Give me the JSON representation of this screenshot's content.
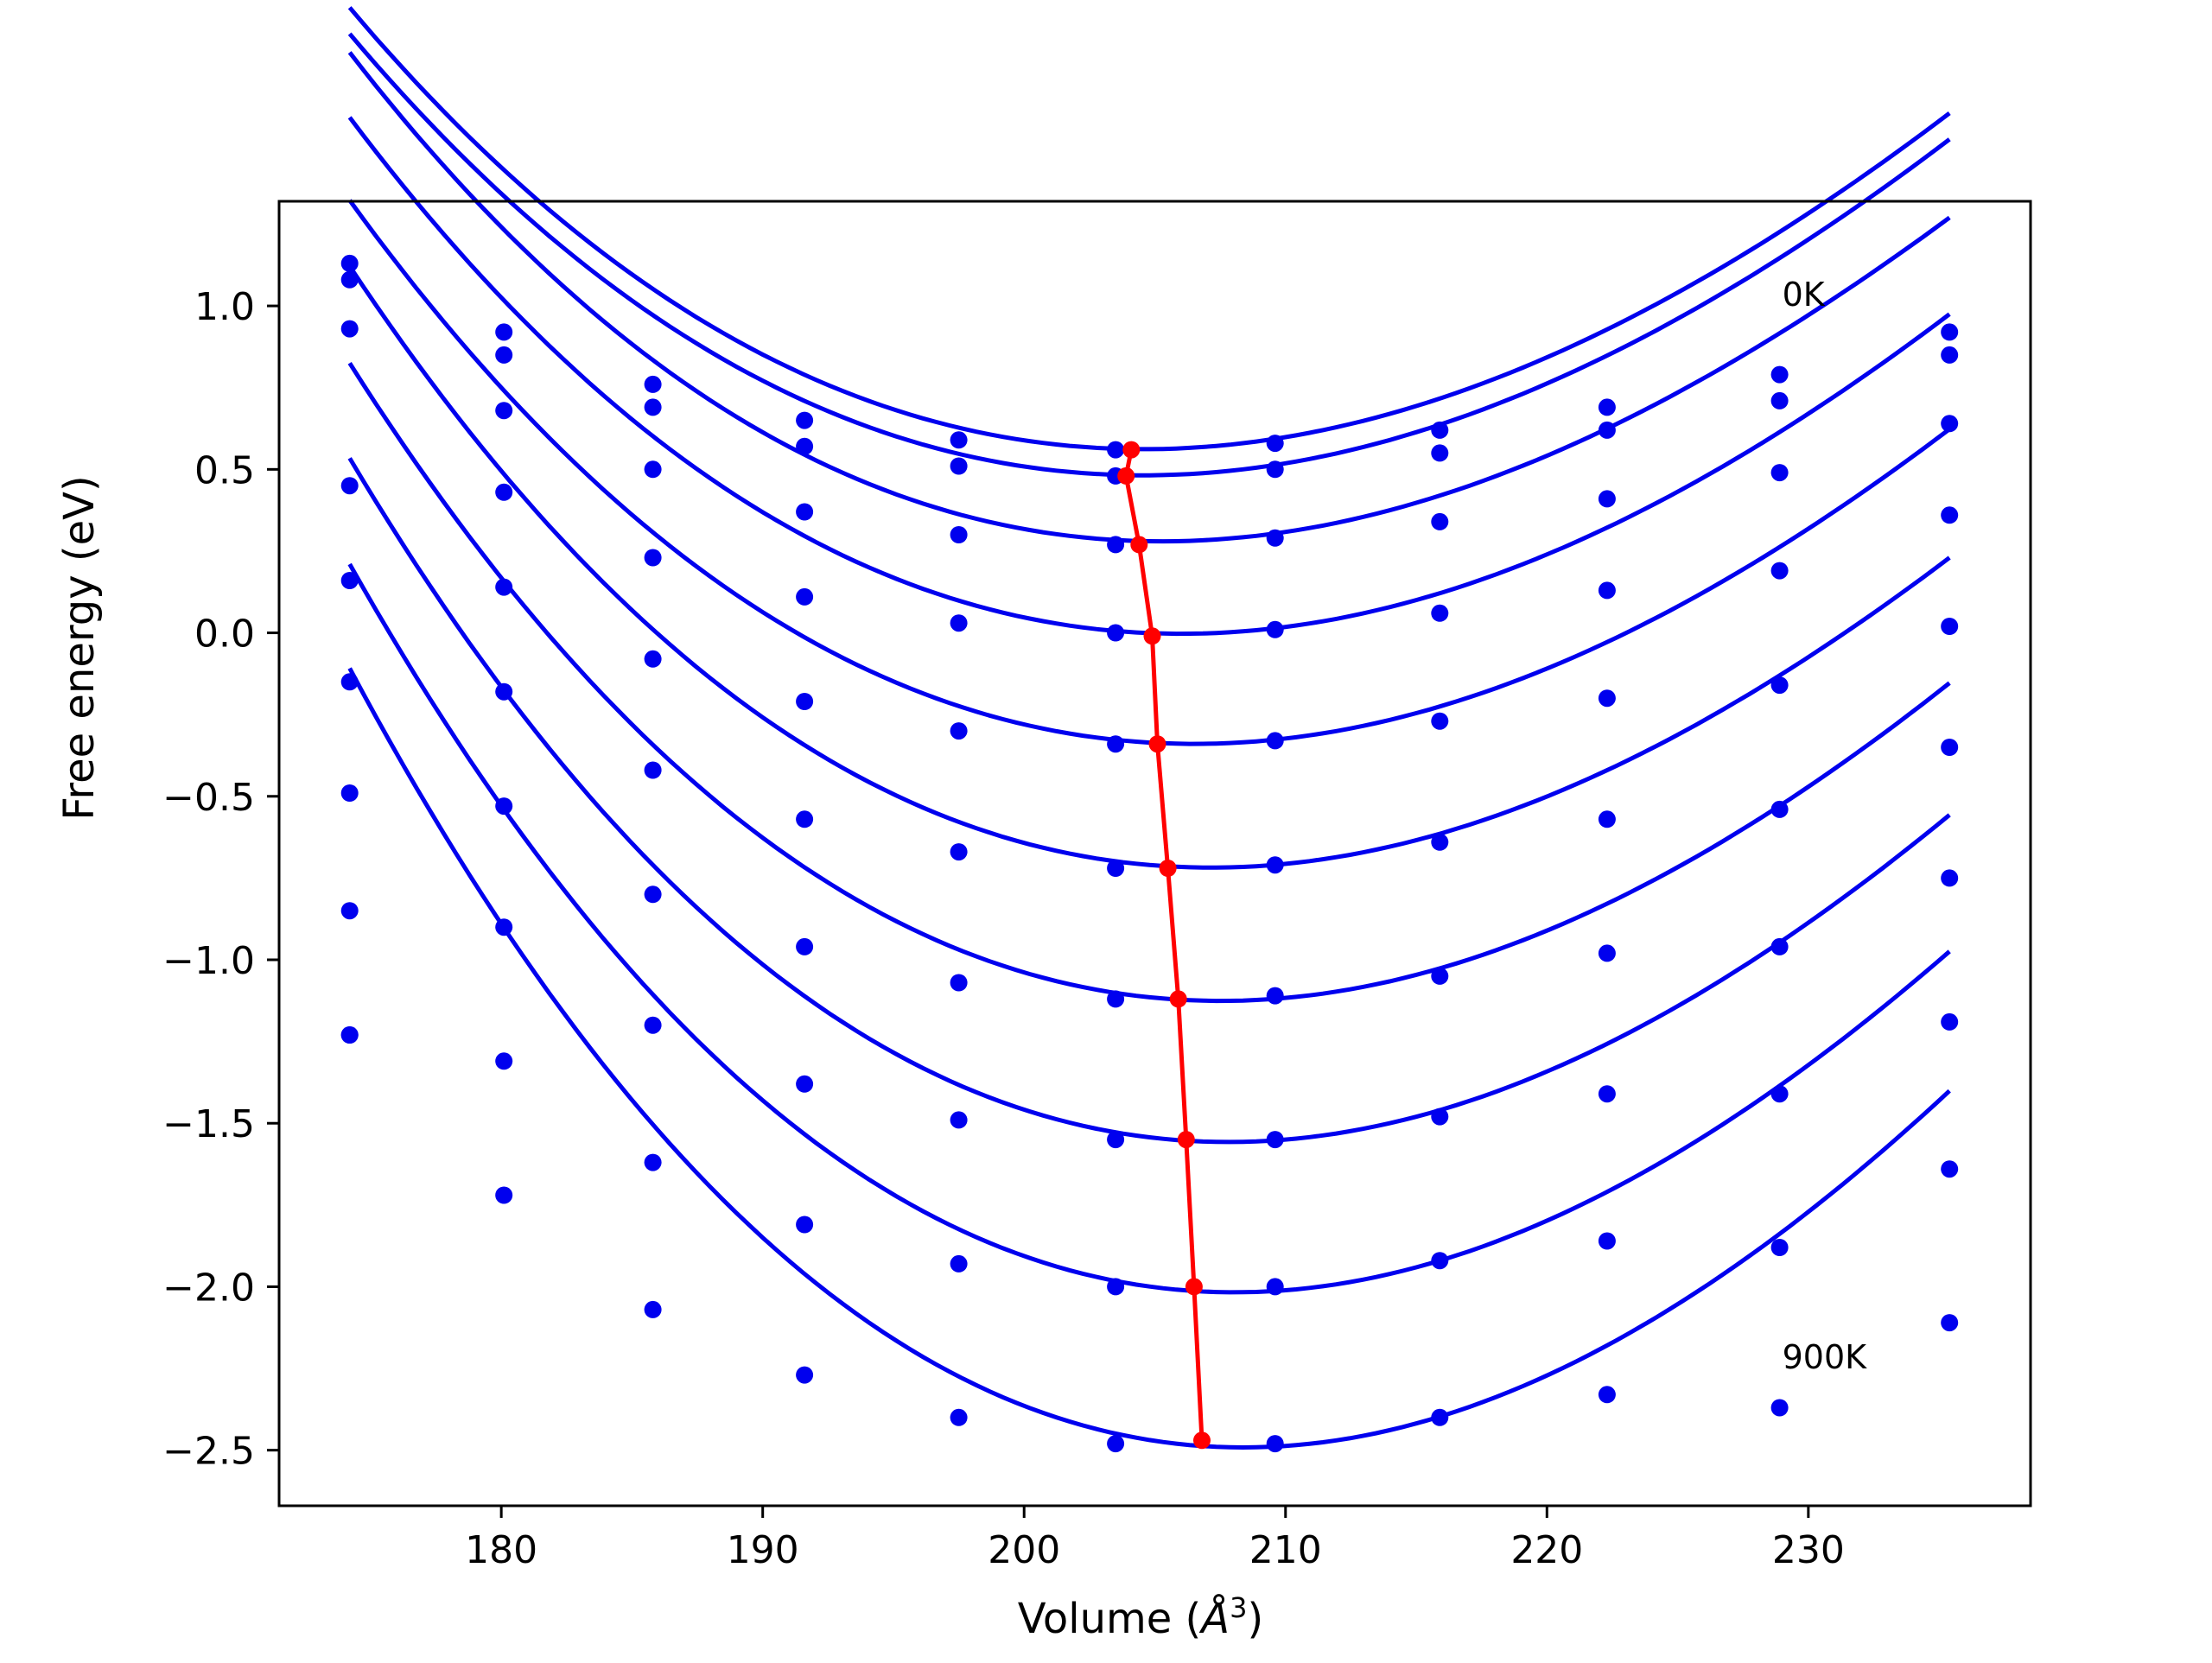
{
  "chart_data": {
    "type": "line",
    "title": "",
    "xlabel": "Volume (",
    "xlabel_symbol": "Å",
    "xlabel_exp": "3",
    "xlabel_close": ")",
    "ylabel": "Free energy (eV)",
    "xlim": [
      171.5,
      238.5
    ],
    "ylim": [
      -2.67,
      1.32
    ],
    "xticks": [
      180,
      190,
      200,
      210,
      220,
      230
    ],
    "xtick_labels": [
      "180",
      "190",
      "200",
      "210",
      "220",
      "230"
    ],
    "yticks": [
      1.0,
      0.5,
      0.0,
      -0.5,
      -1.0,
      -1.5,
      -2.0,
      -2.5
    ],
    "ytick_labels": [
      "1.0",
      "0.5",
      "0.0",
      "−0.5",
      "−1.0",
      "−1.5",
      "−2.0",
      "−2.5"
    ],
    "grid": false,
    "legend": "none",
    "colors": {
      "series": "#0000ee",
      "minima": "#ff0000",
      "frame": "#000000"
    },
    "annotations": [
      {
        "text": "0K",
        "x": 229.0,
        "y": 1.0
      },
      {
        "text": "900K",
        "x": 229.0,
        "y": -2.25
      }
    ],
    "volumes": [
      174.2,
      180.1,
      185.8,
      191.6,
      197.5,
      203.5,
      209.6,
      215.9,
      222.3,
      228.9,
      235.4
    ],
    "series": [
      {
        "scatter": [
          1.13,
          0.92,
          0.76,
          0.65,
          0.59,
          0.56,
          0.58,
          0.62,
          0.69,
          0.79,
          0.92
        ],
        "fit": {
          "coef": [
            0.5622,
            -0.00142,
            0.001285,
            -6.3e-06
          ]
        }
      },
      {
        "scatter": [
          1.08,
          0.85,
          0.69,
          0.57,
          0.51,
          0.48,
          0.5,
          0.55,
          0.62,
          0.71,
          0.85
        ],
        "fit": {
          "coef": [
            0.4822,
            -0.00142,
            0.001285,
            -6.3e-06
          ]
        }
      },
      {
        "scatter": [
          0.93,
          0.68,
          0.5,
          0.37,
          0.3,
          0.27,
          0.29,
          0.34,
          0.41,
          0.49,
          0.64
        ],
        "fit": {
          "coef": [
            0.282,
            -0.00337,
            0.001345,
            -7.5e-06
          ]
        }
      },
      {
        "scatter": [
          0.45,
          0.43,
          0.23,
          0.11,
          0.03,
          0.0,
          0.01,
          0.06,
          0.13,
          0.19,
          0.36
        ],
        "fit": {
          "coef": [
            0.0027,
            -0.00547,
            0.00138,
            -7e-06
          ]
        }
      },
      {
        "scatter": [
          0.16,
          0.14,
          -0.08,
          -0.21,
          -0.3,
          -0.34,
          -0.33,
          -0.27,
          -0.2,
          -0.16,
          0.02
        ],
        "fit": {
          "coef": [
            -0.331,
            -0.00694,
            0.001415,
            -7.2e-06
          ]
        }
      },
      {
        "scatter": [
          -0.15,
          -0.18,
          -0.42,
          -0.57,
          -0.67,
          -0.72,
          -0.71,
          -0.64,
          -0.57,
          -0.54,
          -0.35
        ],
        "fit": {
          "coef": [
            -0.7037,
            -0.00918,
            0.0015,
            -8.3e-06
          ]
        }
      },
      {
        "scatter": [
          -0.49,
          -0.53,
          -0.8,
          -0.96,
          -1.07,
          -1.12,
          -1.11,
          -1.05,
          -0.98,
          -0.96,
          -0.75
        ],
        "fit": {
          "coef": [
            -1.1071,
            -0.01071,
            0.001569,
            -8.3e-06
          ]
        }
      },
      {
        "scatter": [
          -0.85,
          -0.9,
          -1.2,
          -1.38,
          -1.49,
          -1.55,
          -1.55,
          -1.48,
          -1.41,
          -1.41,
          -1.19
        ],
        "fit": {
          "coef": [
            -1.5344,
            -0.01222,
            0.001657,
            -8.8e-06
          ]
        }
      },
      {
        "scatter": [
          -1.23,
          -1.31,
          -1.62,
          -1.81,
          -1.93,
          -2.0,
          -2.0,
          -1.92,
          -1.86,
          -1.88,
          -1.64
        ],
        "fit": {
          "coef": [
            -1.9896,
            -0.01371,
            0.001749,
            -9e-06
          ]
        }
      },
      {
        "scatter": [
          -1.23,
          -1.72,
          -2.07,
          -2.27,
          -2.4,
          -2.48,
          -2.48,
          -2.4,
          -2.33,
          -2.37,
          -2.11
        ],
        "fit": {
          "coef": [
            -2.4575,
            -0.01573,
            0.001852,
            -8.9e-06
          ]
        }
      }
    ],
    "minima": {
      "x": [
        204.1,
        203.9,
        204.4,
        204.9,
        205.1,
        205.5,
        205.9,
        206.2,
        206.5,
        206.8
      ],
      "y": [
        0.56,
        0.48,
        0.27,
        -0.01,
        -0.34,
        -0.72,
        -1.12,
        -1.55,
        -2.0,
        -2.47
      ]
    }
  }
}
